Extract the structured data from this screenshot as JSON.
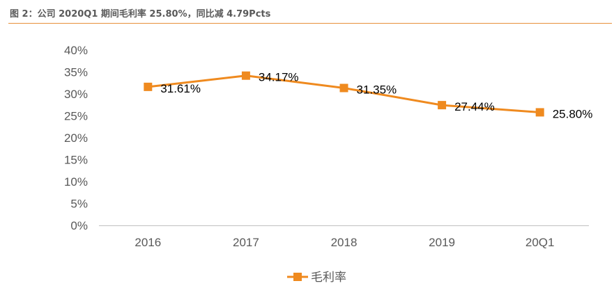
{
  "figure": {
    "title": "图 2：公司 2020Q1 期间毛利率 25.80%，同比减 4.79Pcts"
  },
  "colors": {
    "series": "#ef8a1f",
    "accent_rule": "#e8903a",
    "axis": "#bfbfbf",
    "tick_text": "#595959"
  },
  "chart_data": {
    "type": "line",
    "title": "",
    "xlabel": "",
    "ylabel": "",
    "categories": [
      "2016",
      "2017",
      "2018",
      "2019",
      "20Q1"
    ],
    "series": [
      {
        "name": "毛利率",
        "values": [
          31.61,
          34.17,
          31.35,
          27.44,
          25.8
        ],
        "labels": [
          "31.61%",
          "34.17%",
          "31.35%",
          "27.44%",
          "25.80%"
        ]
      }
    ],
    "ylim": [
      0,
      40
    ],
    "yticks": [
      "0%",
      "5%",
      "10%",
      "15%",
      "20%",
      "25%",
      "30%",
      "35%",
      "40%"
    ],
    "grid": false,
    "legend": "bottom-center",
    "marker": "square"
  }
}
